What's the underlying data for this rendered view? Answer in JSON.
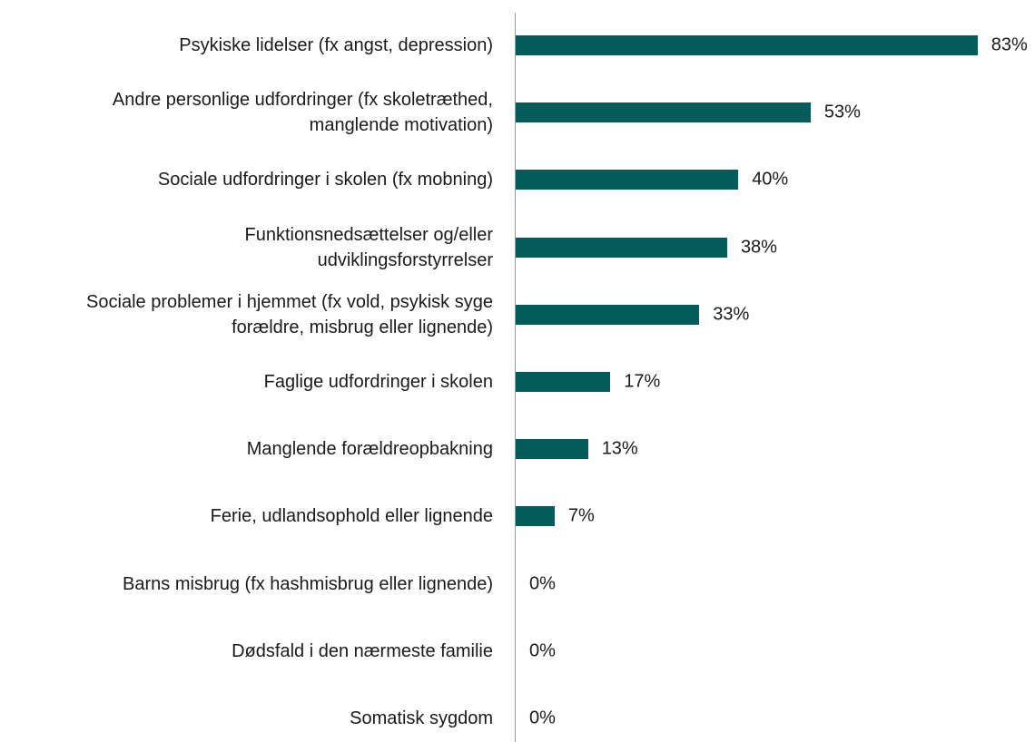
{
  "chart_data": {
    "type": "bar",
    "orientation": "horizontal",
    "categories": [
      "Psykiske lidelser (fx angst, depression)",
      "Andre personlige udfordringer (fx skoletræthed,\nmanglende motivation)",
      "Sociale udfordringer i skolen (fx mobning)",
      "Funktionsnedsættelser og/eller\nudviklingsforstyrrelser",
      "Sociale problemer i hjemmet (fx vold, psykisk syge\nforældre, misbrug eller lignende)",
      "Faglige udfordringer i skolen",
      "Manglende forældreopbakning",
      "Ferie, udlandsophold eller lignende",
      "Barns misbrug (fx hashmisbrug eller lignende)",
      "Dødsfald i den nærmeste familie",
      "Somatisk sygdom"
    ],
    "values": [
      83,
      53,
      40,
      38,
      33,
      17,
      13,
      7,
      0,
      0,
      0
    ],
    "value_labels": [
      "83%",
      "53%",
      "40%",
      "38%",
      "33%",
      "17%",
      "13%",
      "7%",
      "0%",
      "0%",
      "0%"
    ],
    "color": "#035c5a"
  }
}
